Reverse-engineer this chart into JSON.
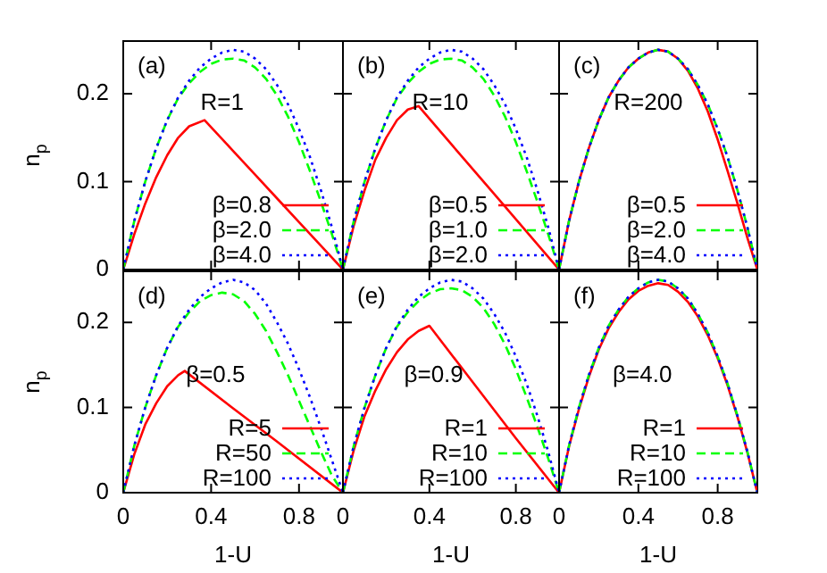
{
  "chart_data": [
    {
      "type": "line",
      "ylabel": "n$_{p}$",
      "annotations": [
        "(a)",
        "R=1"
      ],
      "xlim": [
        0,
        1
      ],
      "ylim": [
        0,
        0.26
      ],
      "xticks": [
        0,
        0.4,
        0.8
      ],
      "yticks": [
        0,
        0.1,
        0.2
      ],
      "tick_labels": "y",
      "legend": "bottom right",
      "series": [
        {
          "name": "β=0.8",
          "color": "#ff0000",
          "line_style": "solid",
          "x": [
            0,
            0.05,
            0.1,
            0.15,
            0.2,
            0.25,
            0.3,
            0.37,
            0.5,
            0.6,
            0.7,
            0.8,
            0.9,
            1
          ],
          "values": [
            0,
            0.04,
            0.075,
            0.105,
            0.13,
            0.15,
            0.163,
            0.17,
            0.135,
            0.108,
            0.081,
            0.054,
            0.027,
            0
          ]
        },
        {
          "name": "β=2.0",
          "color": "#00ff00",
          "line_style": "dashed",
          "x": [
            0,
            0.05,
            0.1,
            0.15,
            0.2,
            0.25,
            0.3,
            0.35,
            0.4,
            0.45,
            0.5,
            0.55,
            0.6,
            0.65,
            0.7,
            0.75,
            0.8,
            0.85,
            0.9,
            0.95,
            1
          ],
          "values": [
            0,
            0.055,
            0.1,
            0.138,
            0.17,
            0.195,
            0.212,
            0.225,
            0.234,
            0.239,
            0.24,
            0.238,
            0.23,
            0.217,
            0.198,
            0.174,
            0.145,
            0.112,
            0.077,
            0.04,
            0
          ]
        },
        {
          "name": "β=4.0",
          "color": "#0000ff",
          "line_style": "dotted",
          "x": [
            0,
            0.05,
            0.1,
            0.15,
            0.2,
            0.25,
            0.3,
            0.35,
            0.4,
            0.45,
            0.5,
            0.55,
            0.6,
            0.65,
            0.7,
            0.75,
            0.8,
            0.85,
            0.9,
            0.95,
            1
          ],
          "values": [
            0,
            0.055,
            0.1,
            0.138,
            0.17,
            0.196,
            0.215,
            0.23,
            0.24,
            0.247,
            0.25,
            0.248,
            0.24,
            0.228,
            0.21,
            0.188,
            0.16,
            0.128,
            0.09,
            0.048,
            0
          ]
        }
      ]
    },
    {
      "type": "line",
      "annotations": [
        "(b)",
        "R=10"
      ],
      "xlim": [
        0,
        1
      ],
      "ylim": [
        0,
        0.26
      ],
      "xticks": [
        0,
        0.4,
        0.8
      ],
      "yticks": [
        0,
        0.1,
        0.2
      ],
      "tick_labels": false,
      "legend": "bottom right",
      "series": [
        {
          "name": "β=0.5",
          "color": "#ff0000",
          "line_style": "solid",
          "x": [
            0,
            0.05,
            0.1,
            0.15,
            0.2,
            0.25,
            0.3,
            0.35,
            0.5,
            0.7,
            1
          ],
          "values": [
            0,
            0.05,
            0.09,
            0.125,
            0.15,
            0.17,
            0.182,
            0.186,
            0.143,
            0.086,
            0
          ]
        },
        {
          "name": "β=1.0",
          "color": "#00ff00",
          "line_style": "dashed",
          "x": [
            0,
            0.05,
            0.1,
            0.15,
            0.2,
            0.25,
            0.3,
            0.35,
            0.4,
            0.45,
            0.5,
            0.55,
            0.6,
            0.65,
            0.7,
            0.75,
            0.8,
            0.85,
            0.9,
            0.95,
            1
          ],
          "values": [
            0,
            0.055,
            0.1,
            0.138,
            0.17,
            0.195,
            0.212,
            0.225,
            0.234,
            0.239,
            0.24,
            0.238,
            0.23,
            0.217,
            0.198,
            0.174,
            0.145,
            0.112,
            0.077,
            0.04,
            0
          ]
        },
        {
          "name": "β=2.0",
          "color": "#0000ff",
          "line_style": "dotted",
          "x": [
            0,
            0.05,
            0.1,
            0.15,
            0.2,
            0.25,
            0.3,
            0.35,
            0.4,
            0.45,
            0.5,
            0.55,
            0.6,
            0.65,
            0.7,
            0.75,
            0.8,
            0.85,
            0.9,
            0.95,
            1
          ],
          "values": [
            0,
            0.055,
            0.1,
            0.138,
            0.17,
            0.196,
            0.215,
            0.23,
            0.24,
            0.247,
            0.25,
            0.248,
            0.24,
            0.228,
            0.21,
            0.188,
            0.16,
            0.128,
            0.09,
            0.048,
            0
          ]
        }
      ]
    },
    {
      "type": "line",
      "annotations": [
        "(c)",
        "R=200"
      ],
      "xlim": [
        0,
        1
      ],
      "ylim": [
        0,
        0.26
      ],
      "xticks": [
        0,
        0.4,
        0.8
      ],
      "yticks": [
        0,
        0.1,
        0.2
      ],
      "tick_labels": false,
      "legend": "bottom right",
      "series": [
        {
          "name": "β=0.5",
          "color": "#ff0000",
          "line_style": "solid",
          "x": [
            0,
            0.05,
            0.1,
            0.15,
            0.2,
            0.25,
            0.3,
            0.35,
            0.4,
            0.45,
            0.5,
            0.55,
            0.6,
            0.65,
            0.7,
            0.75,
            0.8,
            0.85,
            0.9,
            0.95,
            1
          ],
          "values": [
            0,
            0.055,
            0.1,
            0.138,
            0.17,
            0.196,
            0.215,
            0.23,
            0.24,
            0.247,
            0.25,
            0.248,
            0.24,
            0.226,
            0.206,
            0.18,
            0.148,
            0.112,
            0.075,
            0.036,
            0
          ]
        },
        {
          "name": "β=2.0",
          "color": "#00ff00",
          "line_style": "dashed",
          "x": [
            0,
            0.05,
            0.1,
            0.15,
            0.2,
            0.25,
            0.3,
            0.35,
            0.4,
            0.45,
            0.5,
            0.55,
            0.6,
            0.65,
            0.7,
            0.75,
            0.8,
            0.85,
            0.9,
            0.95,
            1
          ],
          "values": [
            0,
            0.055,
            0.1,
            0.138,
            0.17,
            0.196,
            0.215,
            0.23,
            0.24,
            0.247,
            0.25,
            0.248,
            0.24,
            0.228,
            0.21,
            0.188,
            0.16,
            0.128,
            0.09,
            0.048,
            0
          ]
        },
        {
          "name": "β=4.0",
          "color": "#0000ff",
          "line_style": "dotted",
          "x": [
            0,
            0.05,
            0.1,
            0.15,
            0.2,
            0.25,
            0.3,
            0.35,
            0.4,
            0.45,
            0.5,
            0.55,
            0.6,
            0.65,
            0.7,
            0.75,
            0.8,
            0.85,
            0.9,
            0.95,
            1
          ],
          "values": [
            0,
            0.055,
            0.1,
            0.138,
            0.17,
            0.196,
            0.215,
            0.23,
            0.24,
            0.247,
            0.25,
            0.248,
            0.24,
            0.228,
            0.21,
            0.188,
            0.16,
            0.128,
            0.09,
            0.048,
            0
          ]
        }
      ]
    },
    {
      "type": "line",
      "xlabel": "1-U",
      "ylabel": "n$_{p}$",
      "annotations": [
        "(d)",
        "β=0.5"
      ],
      "xlim": [
        0,
        1
      ],
      "ylim": [
        0,
        0.26
      ],
      "xticks": [
        0,
        0.4,
        0.8
      ],
      "yticks": [
        0,
        0.1,
        0.2
      ],
      "legend": "bottom right",
      "series": [
        {
          "name": "R=5",
          "color": "#ff0000",
          "line_style": "solid",
          "x": [
            0,
            0.05,
            0.1,
            0.15,
            0.2,
            0.25,
            0.28,
            0.5,
            0.7,
            1
          ],
          "values": [
            0,
            0.045,
            0.08,
            0.105,
            0.125,
            0.138,
            0.143,
            0.099,
            0.06,
            0
          ]
        },
        {
          "name": "R=50",
          "color": "#00ff00",
          "line_style": "dashed",
          "x": [
            0,
            0.05,
            0.1,
            0.15,
            0.2,
            0.25,
            0.3,
            0.35,
            0.4,
            0.45,
            0.5,
            0.55,
            0.6,
            0.65,
            0.7,
            0.75,
            0.8,
            0.85,
            0.9,
            0.95,
            1
          ],
          "values": [
            0,
            0.055,
            0.1,
            0.138,
            0.17,
            0.195,
            0.212,
            0.225,
            0.232,
            0.235,
            0.233,
            0.225,
            0.21,
            0.19,
            0.165,
            0.138,
            0.108,
            0.078,
            0.048,
            0.02,
            0
          ]
        },
        {
          "name": "R=100",
          "color": "#0000ff",
          "line_style": "dotted",
          "x": [
            0,
            0.05,
            0.1,
            0.15,
            0.2,
            0.25,
            0.3,
            0.35,
            0.4,
            0.45,
            0.5,
            0.55,
            0.6,
            0.65,
            0.7,
            0.75,
            0.8,
            0.85,
            0.9,
            0.95,
            1
          ],
          "values": [
            0,
            0.055,
            0.1,
            0.138,
            0.17,
            0.196,
            0.215,
            0.23,
            0.24,
            0.247,
            0.25,
            0.247,
            0.238,
            0.222,
            0.2,
            0.175,
            0.145,
            0.112,
            0.076,
            0.038,
            0
          ]
        }
      ]
    },
    {
      "type": "line",
      "xlabel": "1-U",
      "annotations": [
        "(e)",
        "β=0.9"
      ],
      "xlim": [
        0,
        1
      ],
      "ylim": [
        0,
        0.26
      ],
      "xticks": [
        0,
        0.4,
        0.8
      ],
      "yticks": [
        0,
        0.1,
        0.2
      ],
      "tick_labels": "x",
      "legend": "bottom right",
      "series": [
        {
          "name": "R=1",
          "color": "#ff0000",
          "line_style": "solid",
          "x": [
            0,
            0.05,
            0.1,
            0.15,
            0.2,
            0.25,
            0.3,
            0.35,
            0.4,
            0.6,
            0.8,
            1
          ],
          "values": [
            0,
            0.05,
            0.09,
            0.12,
            0.145,
            0.165,
            0.18,
            0.19,
            0.196,
            0.13,
            0.064,
            0
          ]
        },
        {
          "name": "R=10",
          "color": "#00ff00",
          "line_style": "dashed",
          "x": [
            0,
            0.05,
            0.1,
            0.15,
            0.2,
            0.25,
            0.3,
            0.35,
            0.4,
            0.45,
            0.5,
            0.55,
            0.6,
            0.65,
            0.7,
            0.75,
            0.8,
            0.85,
            0.9,
            0.95,
            1
          ],
          "values": [
            0,
            0.055,
            0.1,
            0.138,
            0.17,
            0.195,
            0.212,
            0.225,
            0.234,
            0.239,
            0.24,
            0.238,
            0.23,
            0.217,
            0.198,
            0.174,
            0.145,
            0.112,
            0.077,
            0.04,
            0
          ]
        },
        {
          "name": "R=100",
          "color": "#0000ff",
          "line_style": "dotted",
          "x": [
            0,
            0.05,
            0.1,
            0.15,
            0.2,
            0.25,
            0.3,
            0.35,
            0.4,
            0.45,
            0.5,
            0.55,
            0.6,
            0.65,
            0.7,
            0.75,
            0.8,
            0.85,
            0.9,
            0.95,
            1
          ],
          "values": [
            0,
            0.055,
            0.1,
            0.138,
            0.17,
            0.196,
            0.215,
            0.23,
            0.24,
            0.247,
            0.25,
            0.248,
            0.24,
            0.228,
            0.21,
            0.188,
            0.16,
            0.128,
            0.09,
            0.048,
            0
          ]
        }
      ]
    },
    {
      "type": "line",
      "xlabel": "1-U",
      "annotations": [
        "(f)",
        "β=4.0"
      ],
      "xlim": [
        0,
        1
      ],
      "ylim": [
        0,
        0.26
      ],
      "xticks": [
        0,
        0.4,
        0.8
      ],
      "yticks": [
        0,
        0.1,
        0.2
      ],
      "tick_labels": "x",
      "legend": "bottom right",
      "series": [
        {
          "name": "R=1",
          "color": "#ff0000",
          "line_style": "solid",
          "x": [
            0,
            0.05,
            0.1,
            0.15,
            0.2,
            0.25,
            0.3,
            0.35,
            0.4,
            0.45,
            0.5,
            0.55,
            0.6,
            0.65,
            0.7,
            0.75,
            0.8,
            0.85,
            0.9,
            0.95,
            1
          ],
          "values": [
            0,
            0.054,
            0.098,
            0.136,
            0.168,
            0.193,
            0.212,
            0.227,
            0.237,
            0.243,
            0.246,
            0.244,
            0.236,
            0.224,
            0.207,
            0.185,
            0.158,
            0.126,
            0.089,
            0.047,
            0
          ]
        },
        {
          "name": "R=10",
          "color": "#00ff00",
          "line_style": "dashed",
          "x": [
            0,
            0.05,
            0.1,
            0.15,
            0.2,
            0.25,
            0.3,
            0.35,
            0.4,
            0.45,
            0.5,
            0.55,
            0.6,
            0.65,
            0.7,
            0.75,
            0.8,
            0.85,
            0.9,
            0.95,
            1
          ],
          "values": [
            0,
            0.055,
            0.1,
            0.138,
            0.17,
            0.196,
            0.215,
            0.23,
            0.24,
            0.247,
            0.25,
            0.248,
            0.24,
            0.228,
            0.21,
            0.188,
            0.16,
            0.128,
            0.09,
            0.048,
            0
          ]
        },
        {
          "name": "R=100",
          "color": "#0000ff",
          "line_style": "dotted",
          "x": [
            0,
            0.05,
            0.1,
            0.15,
            0.2,
            0.25,
            0.3,
            0.35,
            0.4,
            0.45,
            0.5,
            0.55,
            0.6,
            0.65,
            0.7,
            0.75,
            0.8,
            0.85,
            0.9,
            0.95,
            1
          ],
          "values": [
            0,
            0.055,
            0.1,
            0.138,
            0.17,
            0.196,
            0.215,
            0.23,
            0.24,
            0.247,
            0.25,
            0.248,
            0.24,
            0.228,
            0.21,
            0.188,
            0.16,
            0.128,
            0.09,
            0.048,
            0
          ]
        }
      ]
    }
  ]
}
